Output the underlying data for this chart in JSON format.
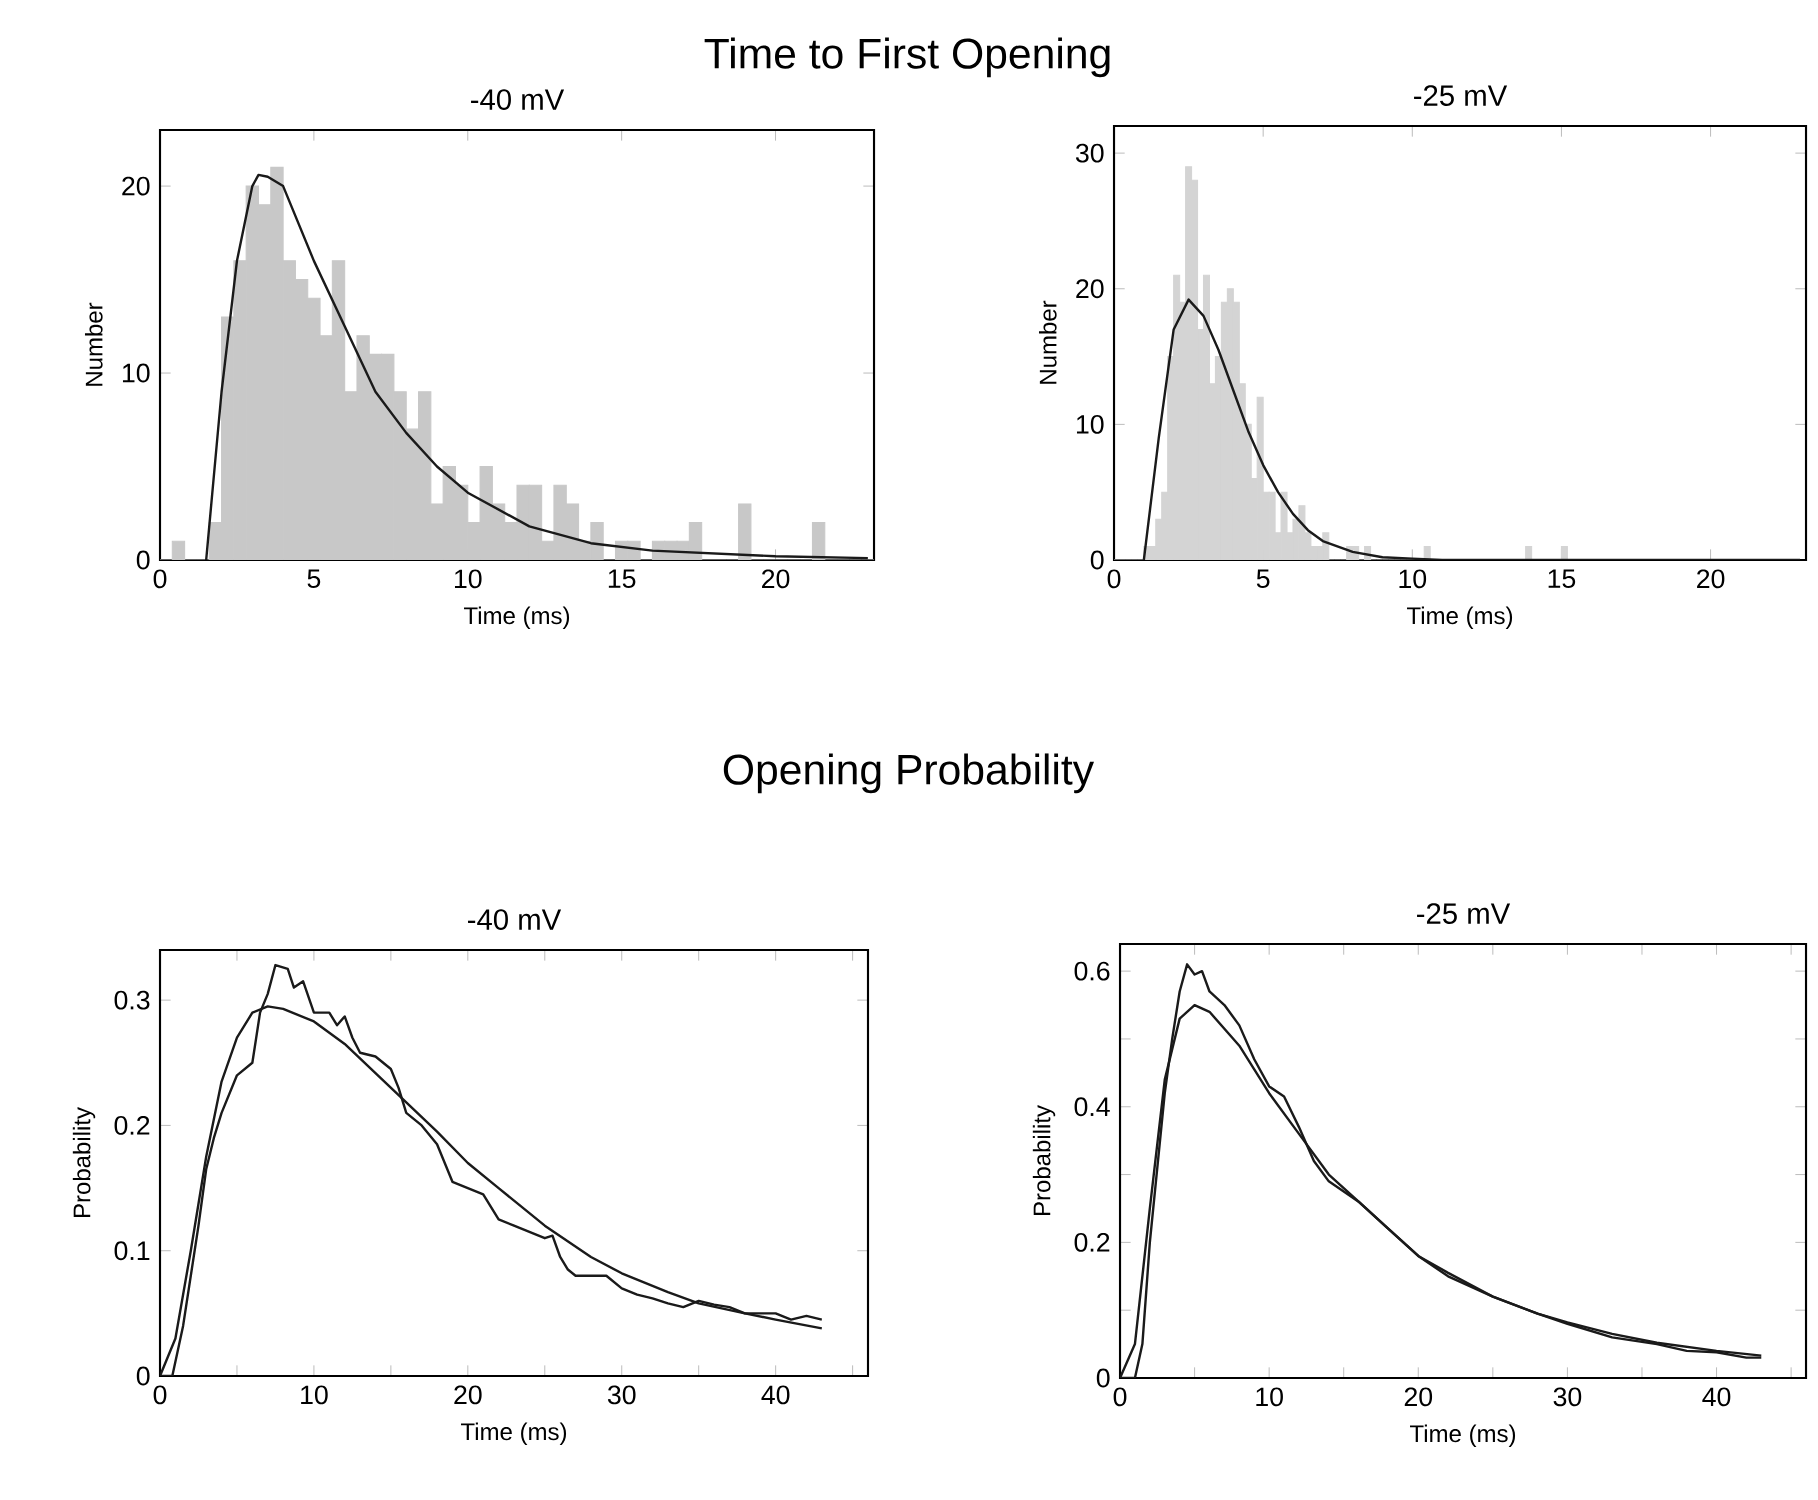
{
  "chart_data": [
    {
      "type": "histogram",
      "title": "Time to First Opening",
      "subtitle": "-40 mV",
      "xlabel": "Time (ms)",
      "ylabel": "Number",
      "xlim": [
        0,
        23.2
      ],
      "ylim": [
        0,
        23
      ],
      "xticks": [
        0,
        5,
        10,
        15,
        20
      ],
      "yticks": [
        0,
        10,
        20
      ],
      "series": [
        {
          "type": "histogram",
          "color": "#c8c8c8",
          "bins": [
            0,
            0.4,
            0.8,
            1.2,
            1.6,
            2,
            2.4,
            2.8,
            3.2,
            3.6,
            4,
            4.4,
            4.8,
            5.2,
            5.6,
            6,
            6.4,
            6.8,
            7.2,
            7.6,
            8,
            8.4,
            8.8,
            9.2,
            9.6,
            10,
            10.4,
            10.8,
            11.2,
            11.6,
            12,
            12.4,
            12.8,
            13.2,
            13.6,
            14,
            14.4,
            14.8,
            15.2,
            15.6,
            16,
            16.4,
            16.8,
            17.2,
            17.6,
            18,
            18.4,
            18.8,
            19.2,
            19.6,
            20,
            20.4,
            20.8,
            21.2,
            21.6,
            22,
            22.4,
            22.8,
            23.2
          ],
          "values": [
            0,
            1,
            0,
            0,
            2,
            13,
            16,
            20,
            19,
            21,
            16,
            15,
            14,
            12,
            16,
            9,
            12,
            11,
            11,
            9,
            7,
            9,
            3,
            5,
            4,
            2,
            5,
            3,
            2,
            4,
            4,
            1,
            4,
            3,
            1,
            2,
            0,
            1,
            1,
            0,
            1,
            1,
            1,
            2,
            0,
            0,
            0,
            3,
            0,
            0,
            0,
            0,
            0,
            2,
            0,
            0,
            0,
            0
          ]
        },
        {
          "type": "line",
          "color": "#1a1a1a",
          "x": [
            1.5,
            2,
            2.5,
            3,
            3.2,
            3.5,
            4,
            5,
            6,
            7,
            8,
            9,
            10,
            12,
            14,
            16,
            20,
            23
          ],
          "values": [
            0,
            9,
            16,
            20,
            20.6,
            20.5,
            20,
            16,
            12.5,
            9,
            6.8,
            5,
            3.6,
            1.8,
            0.9,
            0.5,
            0.2,
            0.1
          ]
        }
      ]
    },
    {
      "type": "histogram",
      "subtitle": "-25 mV",
      "xlabel": "Time (ms)",
      "ylabel": "Number",
      "xlim": [
        0,
        23.2
      ],
      "ylim": [
        0,
        32
      ],
      "xticks": [
        0,
        5,
        10,
        15,
        20
      ],
      "yticks": [
        0,
        10,
        20,
        30
      ],
      "series": [
        {
          "type": "histogram",
          "color": "#d4d4d4",
          "bins": [
            0,
            0.2,
            0.4,
            0.6,
            0.8,
            1,
            1.2,
            1.4,
            1.6,
            1.8,
            2,
            2.2,
            2.4,
            2.6,
            2.8,
            3,
            3.2,
            3.4,
            3.6,
            3.8,
            4,
            4.2,
            4.4,
            4.6,
            4.8,
            5,
            5.2,
            5.4,
            5.6,
            5.8,
            6,
            6.2,
            6.4,
            6.6,
            6.8,
            7,
            7.2,
            7.4,
            7.6,
            7.8,
            8,
            8.2,
            8.4,
            8.6,
            8.8,
            9,
            9.2,
            9.4,
            9.6,
            9.8,
            10,
            10.2,
            10.4,
            10.6,
            10.8,
            11,
            11.2,
            11.4,
            11.6,
            11.8,
            12,
            12.2,
            12.4,
            12.6,
            12.8,
            13,
            13.2,
            13.4,
            13.6,
            13.8,
            14,
            14.2,
            14.4,
            14.6,
            14.8,
            15,
            15.2,
            15.4,
            15.6,
            15.8,
            16
          ],
          "values": [
            0,
            0,
            0,
            0,
            0,
            1,
            1,
            3,
            5,
            15,
            21,
            19,
            29,
            28,
            17,
            21,
            13,
            15,
            19,
            20,
            19,
            13,
            10,
            6,
            12,
            5,
            5,
            2,
            5,
            2,
            3,
            4,
            2,
            1,
            1,
            2,
            0,
            0,
            0,
            1,
            1,
            0,
            1,
            0,
            0,
            0,
            0,
            0,
            0,
            0,
            0,
            0,
            1,
            0,
            0,
            0,
            0,
            0,
            0,
            0,
            0,
            0,
            0,
            0,
            0,
            0,
            0,
            0,
            0,
            1,
            0,
            0,
            0,
            0,
            0,
            1,
            0,
            0,
            0,
            0
          ]
        },
        {
          "type": "line",
          "color": "#1a1a1a",
          "x": [
            1,
            1.5,
            2,
            2.5,
            3,
            3.5,
            4,
            4.5,
            5,
            5.5,
            6,
            6.5,
            7,
            8,
            9,
            10,
            11,
            23
          ],
          "values": [
            0,
            9,
            17,
            19.2,
            18,
            15.5,
            12.5,
            9.5,
            7,
            5,
            3.4,
            2.2,
            1.4,
            0.6,
            0.2,
            0.1,
            0,
            0
          ]
        }
      ]
    },
    {
      "type": "line",
      "title": "Opening Probability",
      "subtitle": "-40 mV",
      "xlabel": "Time (ms)",
      "ylabel": "Probability",
      "xlim": [
        0,
        46
      ],
      "ylim": [
        0,
        0.34
      ],
      "xticks": [
        0,
        {
          "value": 5,
          "label": null
        },
        10,
        {
          "value": 15,
          "label": null
        },
        20,
        {
          "value": 25,
          "label": null
        },
        30,
        {
          "value": 35,
          "label": null
        },
        40,
        {
          "value": 45,
          "label": null
        }
      ],
      "yticks": [
        0,
        0.1,
        0.2,
        0.3
      ],
      "series": [
        {
          "color": "#1a1a1a",
          "x": [
            0,
            0.8,
            1.5,
            2.5,
            3,
            3.5,
            4,
            5,
            6,
            6.5,
            7,
            7.5,
            8.3,
            8.7,
            9.3,
            10,
            11,
            11.5,
            12,
            12.5,
            13,
            14,
            15,
            15.5,
            16,
            17,
            18,
            19,
            20,
            21,
            22,
            23,
            24,
            25,
            25.5,
            26,
            26.5,
            27,
            28,
            29,
            30,
            31,
            32,
            33,
            34,
            35,
            36,
            37,
            38,
            39,
            40,
            41,
            42,
            43
          ],
          "values": [
            0,
            0,
            0.04,
            0.12,
            0.165,
            0.19,
            0.21,
            0.24,
            0.25,
            0.29,
            0.305,
            0.328,
            0.325,
            0.31,
            0.315,
            0.29,
            0.29,
            0.28,
            0.287,
            0.27,
            0.258,
            0.255,
            0.245,
            0.23,
            0.21,
            0.2,
            0.185,
            0.155,
            0.15,
            0.145,
            0.125,
            0.12,
            0.115,
            0.11,
            0.112,
            0.095,
            0.085,
            0.08,
            0.08,
            0.08,
            0.07,
            0.065,
            0.062,
            0.058,
            0.055,
            0.06,
            0.057,
            0.055,
            0.05,
            0.05,
            0.05,
            0.045,
            0.048,
            0.045
          ]
        },
        {
          "color": "#1a1a1a",
          "x": [
            0,
            1,
            2,
            3,
            4,
            5,
            6,
            7,
            8,
            10,
            12,
            15,
            18,
            20,
            22,
            25,
            28,
            30,
            33,
            35,
            38,
            40,
            43
          ],
          "values": [
            0,
            0.03,
            0.1,
            0.175,
            0.235,
            0.27,
            0.29,
            0.295,
            0.293,
            0.283,
            0.265,
            0.23,
            0.195,
            0.17,
            0.15,
            0.12,
            0.095,
            0.082,
            0.067,
            0.058,
            0.05,
            0.045,
            0.038
          ]
        }
      ]
    },
    {
      "type": "line",
      "subtitle": "-25 mV",
      "xlabel": "Time (ms)",
      "ylabel": "Probability",
      "xlim": [
        0,
        46
      ],
      "ylim": [
        0,
        0.64
      ],
      "xticks": [
        0,
        {
          "value": 5,
          "label": null
        },
        10,
        {
          "value": 15,
          "label": null
        },
        20,
        {
          "value": 25,
          "label": null
        },
        30,
        {
          "value": 35,
          "label": null
        },
        40,
        {
          "value": 45,
          "label": null
        }
      ],
      "yticks": [
        0,
        {
          "value": 0.1,
          "label": null
        },
        0.2,
        {
          "value": 0.3,
          "label": null
        },
        0.4,
        {
          "value": 0.5,
          "label": null
        },
        0.6
      ],
      "series": [
        {
          "color": "#1a1a1a",
          "x": [
            0,
            1,
            1.5,
            2,
            3,
            3.5,
            4,
            4.5,
            5,
            5.5,
            6,
            7,
            8,
            9,
            10,
            11,
            12,
            13,
            14,
            16,
            18,
            20,
            22,
            25,
            28,
            30,
            33,
            36,
            38,
            40,
            42,
            43
          ],
          "values": [
            0,
            0,
            0.05,
            0.2,
            0.42,
            0.5,
            0.57,
            0.61,
            0.595,
            0.6,
            0.57,
            0.55,
            0.52,
            0.47,
            0.43,
            0.415,
            0.37,
            0.32,
            0.29,
            0.26,
            0.22,
            0.18,
            0.15,
            0.12,
            0.095,
            0.08,
            0.06,
            0.05,
            0.04,
            0.038,
            0.03,
            0.03
          ]
        },
        {
          "color": "#1a1a1a",
          "x": [
            0,
            1,
            2,
            3,
            4,
            5,
            6,
            8,
            10,
            12,
            14,
            16,
            18,
            20,
            22,
            25,
            28,
            30,
            33,
            36,
            40,
            43
          ],
          "values": [
            0,
            0.05,
            0.25,
            0.44,
            0.53,
            0.55,
            0.54,
            0.49,
            0.42,
            0.36,
            0.3,
            0.26,
            0.22,
            0.18,
            0.155,
            0.12,
            0.095,
            0.082,
            0.065,
            0.052,
            0.04,
            0.033
          ]
        }
      ]
    }
  ]
}
